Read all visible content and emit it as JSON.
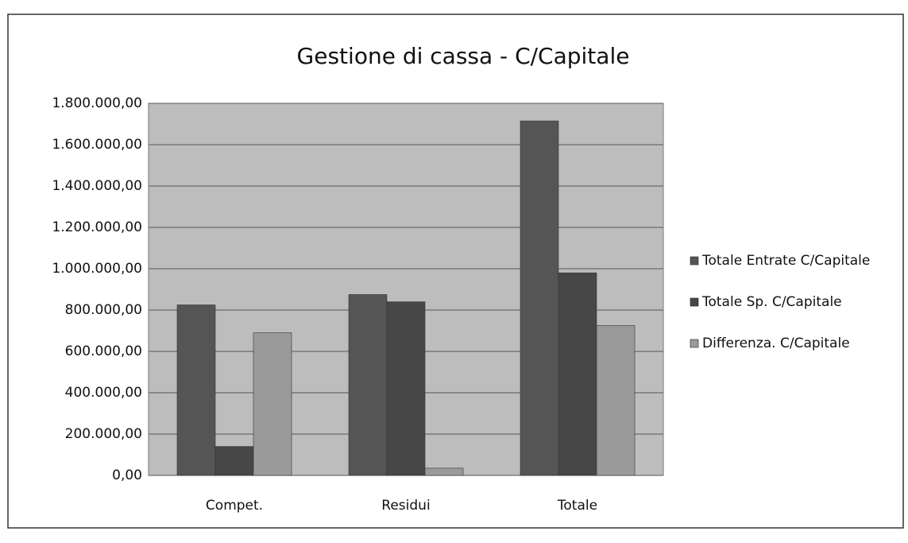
{
  "chart_data": {
    "type": "bar",
    "title": "Gestione di cassa - C/Capitale",
    "categories": [
      "Compet.",
      "Residui",
      "Totale"
    ],
    "series": [
      {
        "name": "Totale Entrate C/Capitale",
        "color": "#555555",
        "values": [
          825000,
          875000,
          1715000
        ]
      },
      {
        "name": "Totale Sp. C/Capitale",
        "color": "#474747",
        "values": [
          140000,
          840000,
          980000
        ]
      },
      {
        "name": "Differenza.  C/Capitale",
        "color": "#9a9a9a",
        "values": [
          690000,
          35000,
          725000
        ]
      }
    ],
    "ylim": [
      0,
      1800000
    ],
    "yticks": [
      {
        "value": 0,
        "label": "0,00"
      },
      {
        "value": 200000,
        "label": "200.000,00"
      },
      {
        "value": 400000,
        "label": "400.000,00"
      },
      {
        "value": 600000,
        "label": "600.000,00"
      },
      {
        "value": 800000,
        "label": "800.000,00"
      },
      {
        "value": 1000000,
        "label": "1.000.000,00"
      },
      {
        "value": 1200000,
        "label": "1.200.000,00"
      },
      {
        "value": 1400000,
        "label": "1.400.000,00"
      },
      {
        "value": 1600000,
        "label": "1.600.000,00"
      },
      {
        "value": 1800000,
        "label": "1.800.000,00"
      }
    ],
    "grid": true,
    "legend": "right"
  }
}
